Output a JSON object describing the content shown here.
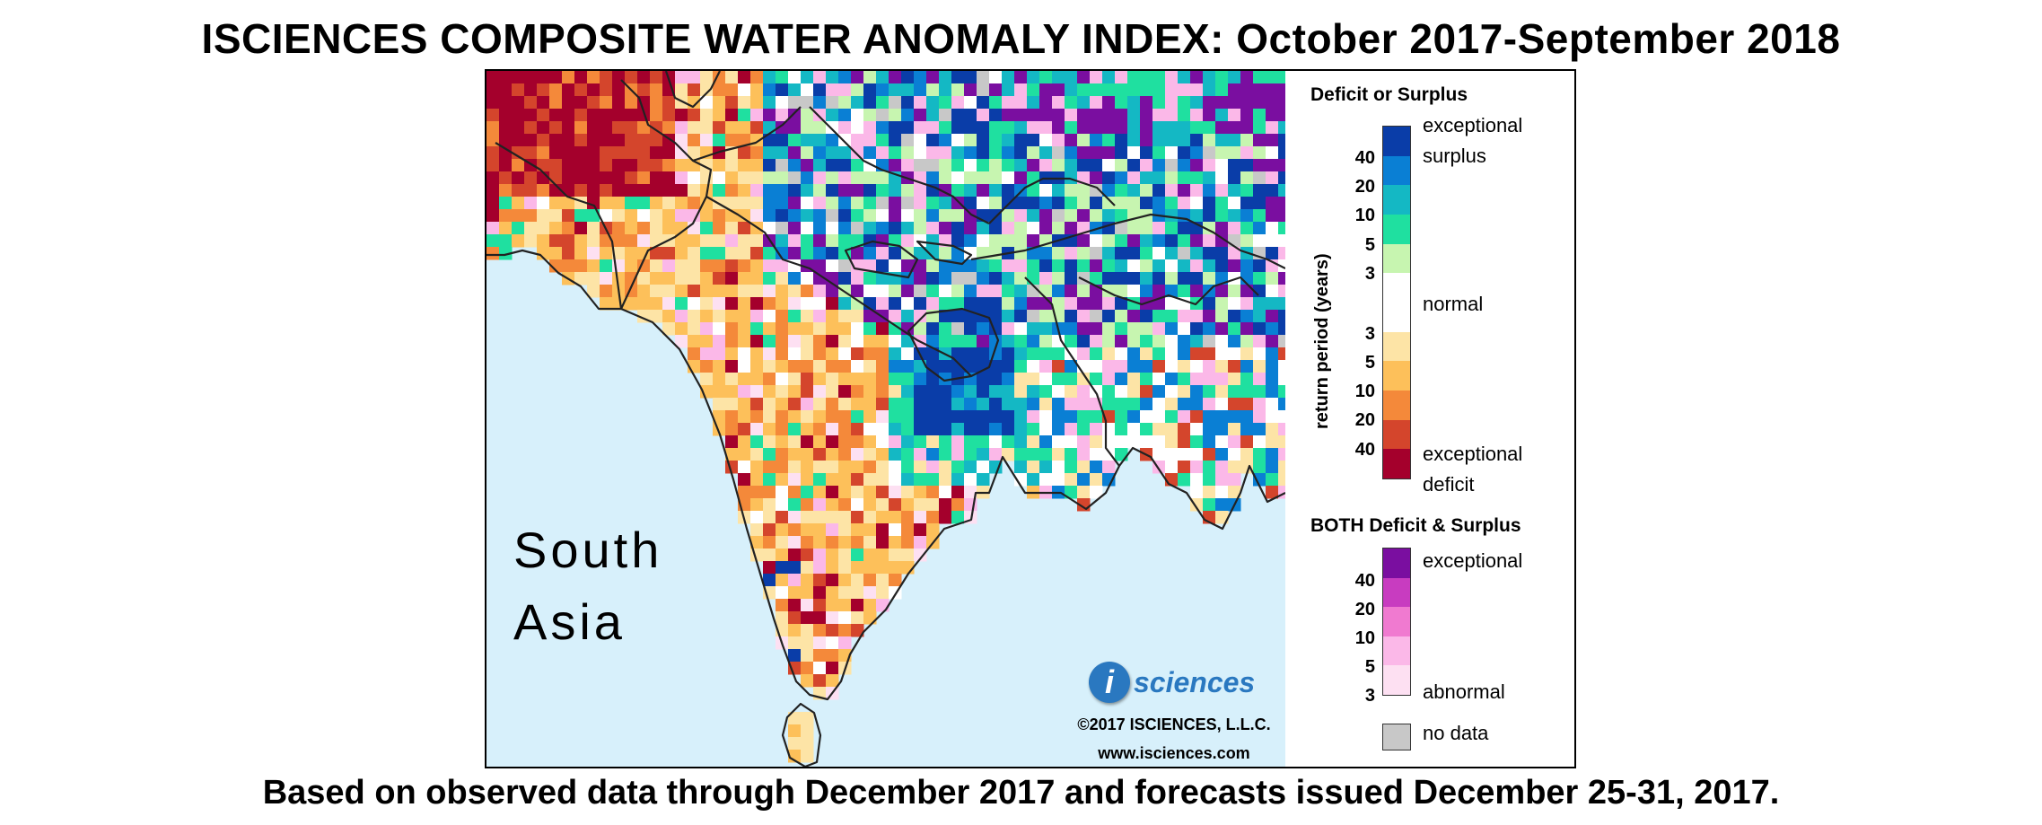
{
  "title": "ISCIENCES COMPOSITE WATER ANOMALY INDEX: October 2017-September 2018",
  "subtitle": "Based on observed data through December 2017 and forecasts issued December 25-31, 2017.",
  "map": {
    "region_label_line1": "South",
    "region_label_line2": "Asia",
    "ocean_color": "#d7f0fb",
    "border_color": "#222222"
  },
  "branding": {
    "logo_letter": "i",
    "logo_text": "sciences",
    "copyright": "©2017 ISCIENCES, L.L.C.",
    "website": "www.isciences.com"
  },
  "legend": {
    "axis_title": "return period (years)",
    "deficit_surplus": {
      "heading": "Deficit or Surplus",
      "label_top_1": "exceptional",
      "label_top_2": "surplus",
      "label_mid": "normal",
      "label_bottom_1": "exceptional",
      "label_bottom_2": "deficit",
      "surplus_ticks": [
        "40",
        "20",
        "10",
        "5",
        "3"
      ],
      "deficit_ticks": [
        "3",
        "5",
        "10",
        "20",
        "40"
      ],
      "surplus_colors": [
        "#0a3da8",
        "#0a7fd4",
        "#14b8c4",
        "#1fe0a0",
        "#c7f5b0"
      ],
      "normal_color": "#ffffff",
      "deficit_colors": [
        "#fde4a6",
        "#fdc05a",
        "#f4893a",
        "#d4452c",
        "#a4002c"
      ]
    },
    "both": {
      "heading": "BOTH Deficit & Surplus",
      "label_top": "exceptional",
      "label_bottom": "abnormal",
      "ticks": [
        "40",
        "20",
        "10",
        "5",
        "3"
      ],
      "colors": [
        "#7a0ea0",
        "#c83cc0",
        "#f07ad0",
        "#fbb8e8",
        "#fde0f2"
      ]
    },
    "no_data": {
      "label": "no data",
      "color": "#c8c8c8"
    }
  }
}
